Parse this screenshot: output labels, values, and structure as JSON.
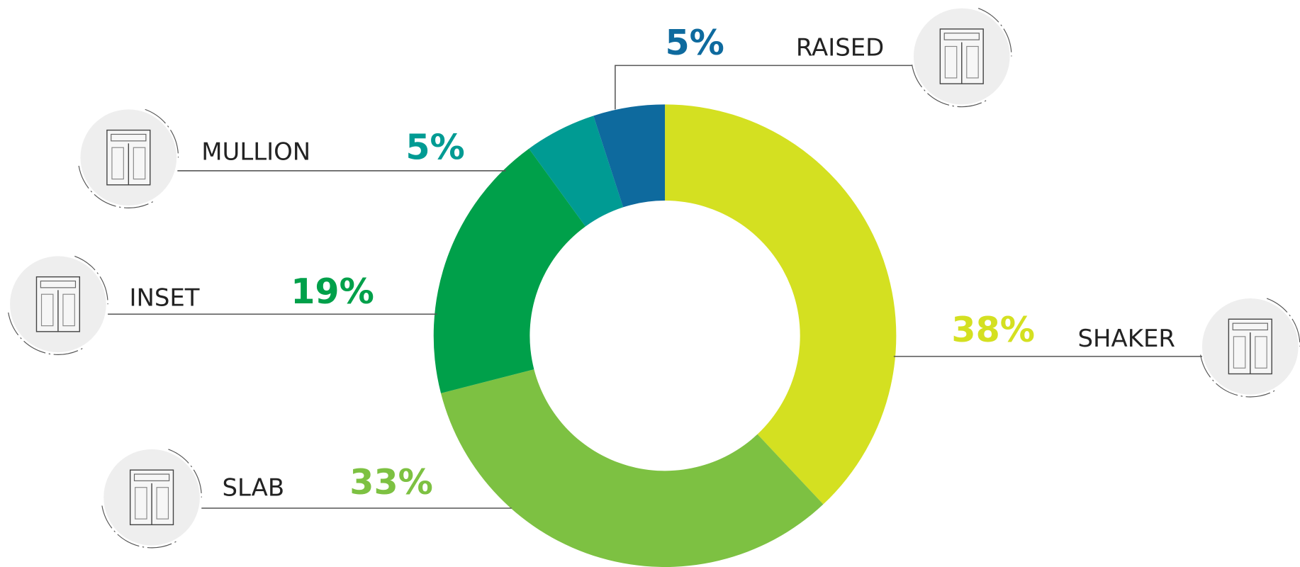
{
  "chart_data": {
    "type": "donut",
    "categories": [
      "SHAKER",
      "SLAB",
      "INSET",
      "MULLION",
      "RAISED"
    ],
    "values": [
      38,
      33,
      19,
      5,
      5
    ],
    "value_labels": [
      "38%",
      "33%",
      "19%",
      "5%",
      "5%"
    ],
    "colors": [
      "#d4e021",
      "#7dc142",
      "#00a04a",
      "#009b93",
      "#0e6a9e"
    ]
  }
}
